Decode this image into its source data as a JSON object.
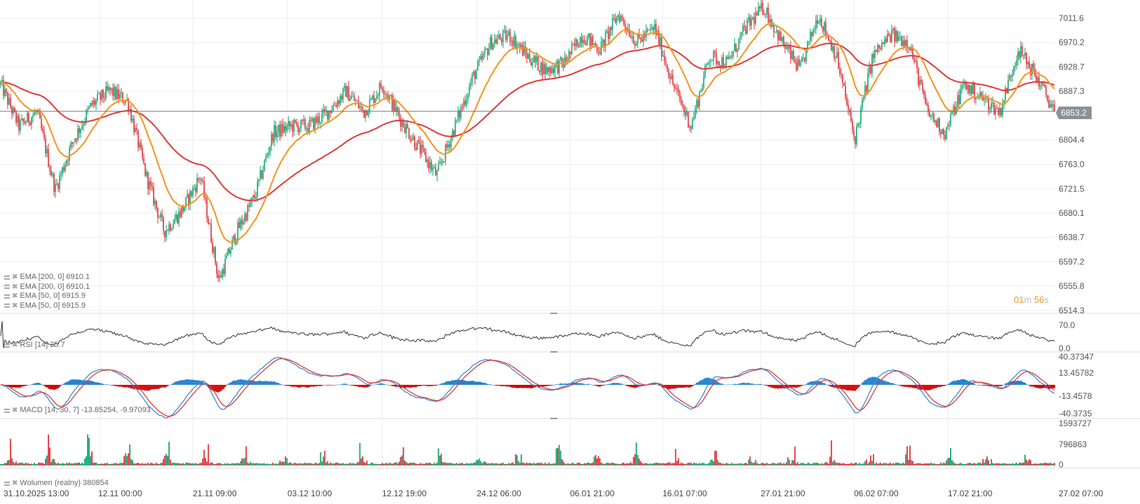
{
  "chart_data": {
    "type": "candlestick",
    "price_axis_ticks": [
      "7011.6",
      "6970.2",
      "6928.7",
      "6887.3",
      "6853.2",
      "6804.4",
      "6763.0",
      "6721.5",
      "6680.1",
      "6638.7",
      "6597.2",
      "6555.8",
      "6514.3"
    ],
    "price_range": [
      6514.3,
      7011.6
    ],
    "approx_close_path": [
      6899,
      6828,
      6852,
      6720,
      6804,
      6864,
      6888,
      6870,
      6744,
      6649,
      6685,
      6744,
      6565,
      6649,
      6709,
      6816,
      6828,
      6828,
      6852,
      6888,
      6852,
      6899,
      6840,
      6792,
      6744,
      6828,
      6912,
      6971,
      6983,
      6947,
      6923,
      6935,
      6983,
      6959,
      7019,
      6971,
      6995,
      6899,
      6828,
      6947,
      6935,
      6995,
      7031,
      6971,
      6923,
      7019,
      6947,
      6804,
      6947,
      6983,
      6971,
      6852,
      6816,
      6899,
      6876,
      6852,
      6959,
      6912,
      6853
    ],
    "x_tick_labels": [
      "31.10.2025  13:00",
      "12.11  00:00",
      "21.11  09:00",
      "03.12  10:00",
      "12.12  19:00",
      "24.12  06:00",
      "06.01  21:00",
      "16.01  07:00",
      "27.01  21:00",
      "06.02  07:00",
      "17.02  21:00",
      "27.02  07:00"
    ],
    "current_price": "6853.2",
    "colors": {
      "up": "#12a672",
      "down": "#e0333a",
      "ema50": "#f7941d",
      "ema200": "#e03a3a",
      "macd": "#3a8fd8",
      "signal": "#e03a3a",
      "hist_pos": "#1f7fcf",
      "hist_neg": "#d40000",
      "rsi": "#333333",
      "grid": "#eeeeee"
    },
    "grid": true,
    "indicators": {
      "ema_lines": [
        "EMA [200,  0] 6910.1",
        "EMA [200,  0] 6910.1",
        "EMA [50,  0] 6915.9",
        "EMA [50,  0] 6915.9"
      ],
      "rsi": {
        "label": "RSI [14] 25.7",
        "ticks": [
          "70.0",
          "0.0"
        ]
      },
      "macd": {
        "label": "MACD [14, 30, 7] -13.85254,  -9.97093",
        "ticks": [
          "40.37347",
          "13.45782",
          "-13.4578",
          "-40.3735"
        ]
      },
      "volume": {
        "label": "Wolumen (realny) 380854",
        "ticks": [
          "1593727",
          "796863",
          "0"
        ]
      }
    }
  },
  "timer": {
    "min": "01",
    "min_unit": "m",
    "sec": "56",
    "sec_unit": "s"
  }
}
